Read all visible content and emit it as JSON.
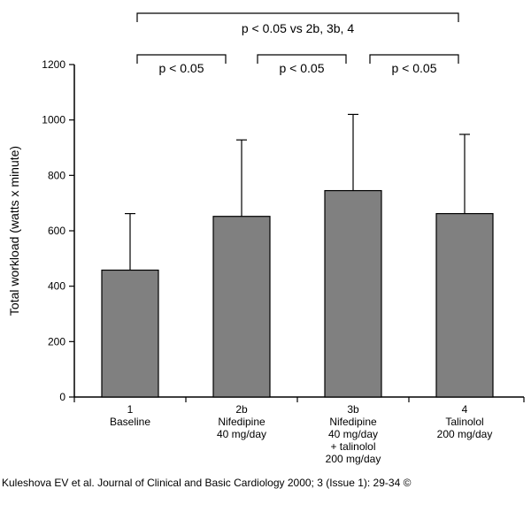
{
  "chart_data": {
    "type": "bar",
    "title": "",
    "xlabel": "",
    "ylabel": "Total workload (watts x minute)",
    "ylim": [
      0,
      1200
    ],
    "yticks": [
      0,
      200,
      400,
      600,
      800,
      1000,
      1200
    ],
    "categories": [
      [
        "1",
        "Baseline"
      ],
      [
        "2b",
        "Nifedipine",
        "40 mg/day"
      ],
      [
        "3b",
        "Nifedipine",
        "40 mg/day",
        "+ talinolol",
        "200 mg/day"
      ],
      [
        "4",
        "Talinolol",
        "200 mg/day"
      ]
    ],
    "values": [
      458,
      652,
      745,
      662
    ],
    "error_upper": [
      662,
      928,
      1020,
      948
    ],
    "bar_color": "#808080",
    "significance": {
      "overall": {
        "label": "p < 0.05 vs 2b, 3b, 4",
        "from": 0,
        "to": 3
      },
      "pairs": [
        {
          "label": "p < 0.05",
          "from": 0,
          "to": 1
        },
        {
          "label": "p < 0.05",
          "from": 1,
          "to": 2
        },
        {
          "label": "p < 0.05",
          "from": 2,
          "to": 3
        }
      ]
    }
  },
  "caption": "Kuleshova EV et al. Journal of Clinical and Basic Cardiology 2000; 3 (Issue 1): 29-34 ©"
}
